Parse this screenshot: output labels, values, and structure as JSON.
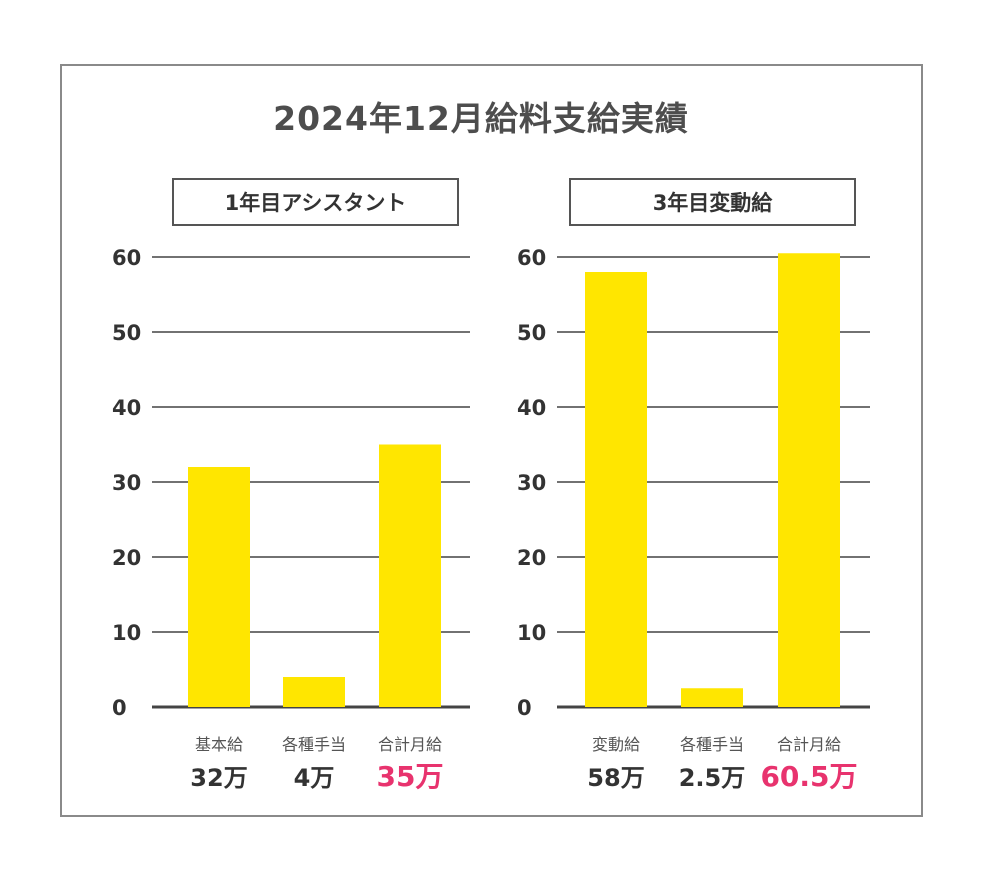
{
  "title": "2024年12月給料支給実績",
  "colors": {
    "bar": "#ffe600",
    "accent": "#e8336e",
    "text": "#333333",
    "grid": "#444444"
  },
  "chart_data": [
    {
      "type": "bar",
      "title": "1年目アシスタント",
      "ylim": [
        0,
        60
      ],
      "yticks": [
        0,
        10,
        20,
        30,
        40,
        50,
        60
      ],
      "grid": true,
      "categories": [
        "基本給",
        "各種手当",
        "合計月給"
      ],
      "values": [
        32,
        4,
        35
      ],
      "value_labels": [
        "32万",
        "4万",
        "35万"
      ],
      "highlight_index": 2
    },
    {
      "type": "bar",
      "title": "3年目変動給",
      "ylim": [
        0,
        60
      ],
      "yticks": [
        0,
        10,
        20,
        30,
        40,
        50,
        60
      ],
      "grid": true,
      "categories": [
        "変動給",
        "各種手当",
        "合計月給"
      ],
      "values": [
        58,
        2.5,
        60.5
      ],
      "value_labels": [
        "58万",
        "2.5万",
        "60.5万"
      ],
      "highlight_index": 2
    }
  ]
}
